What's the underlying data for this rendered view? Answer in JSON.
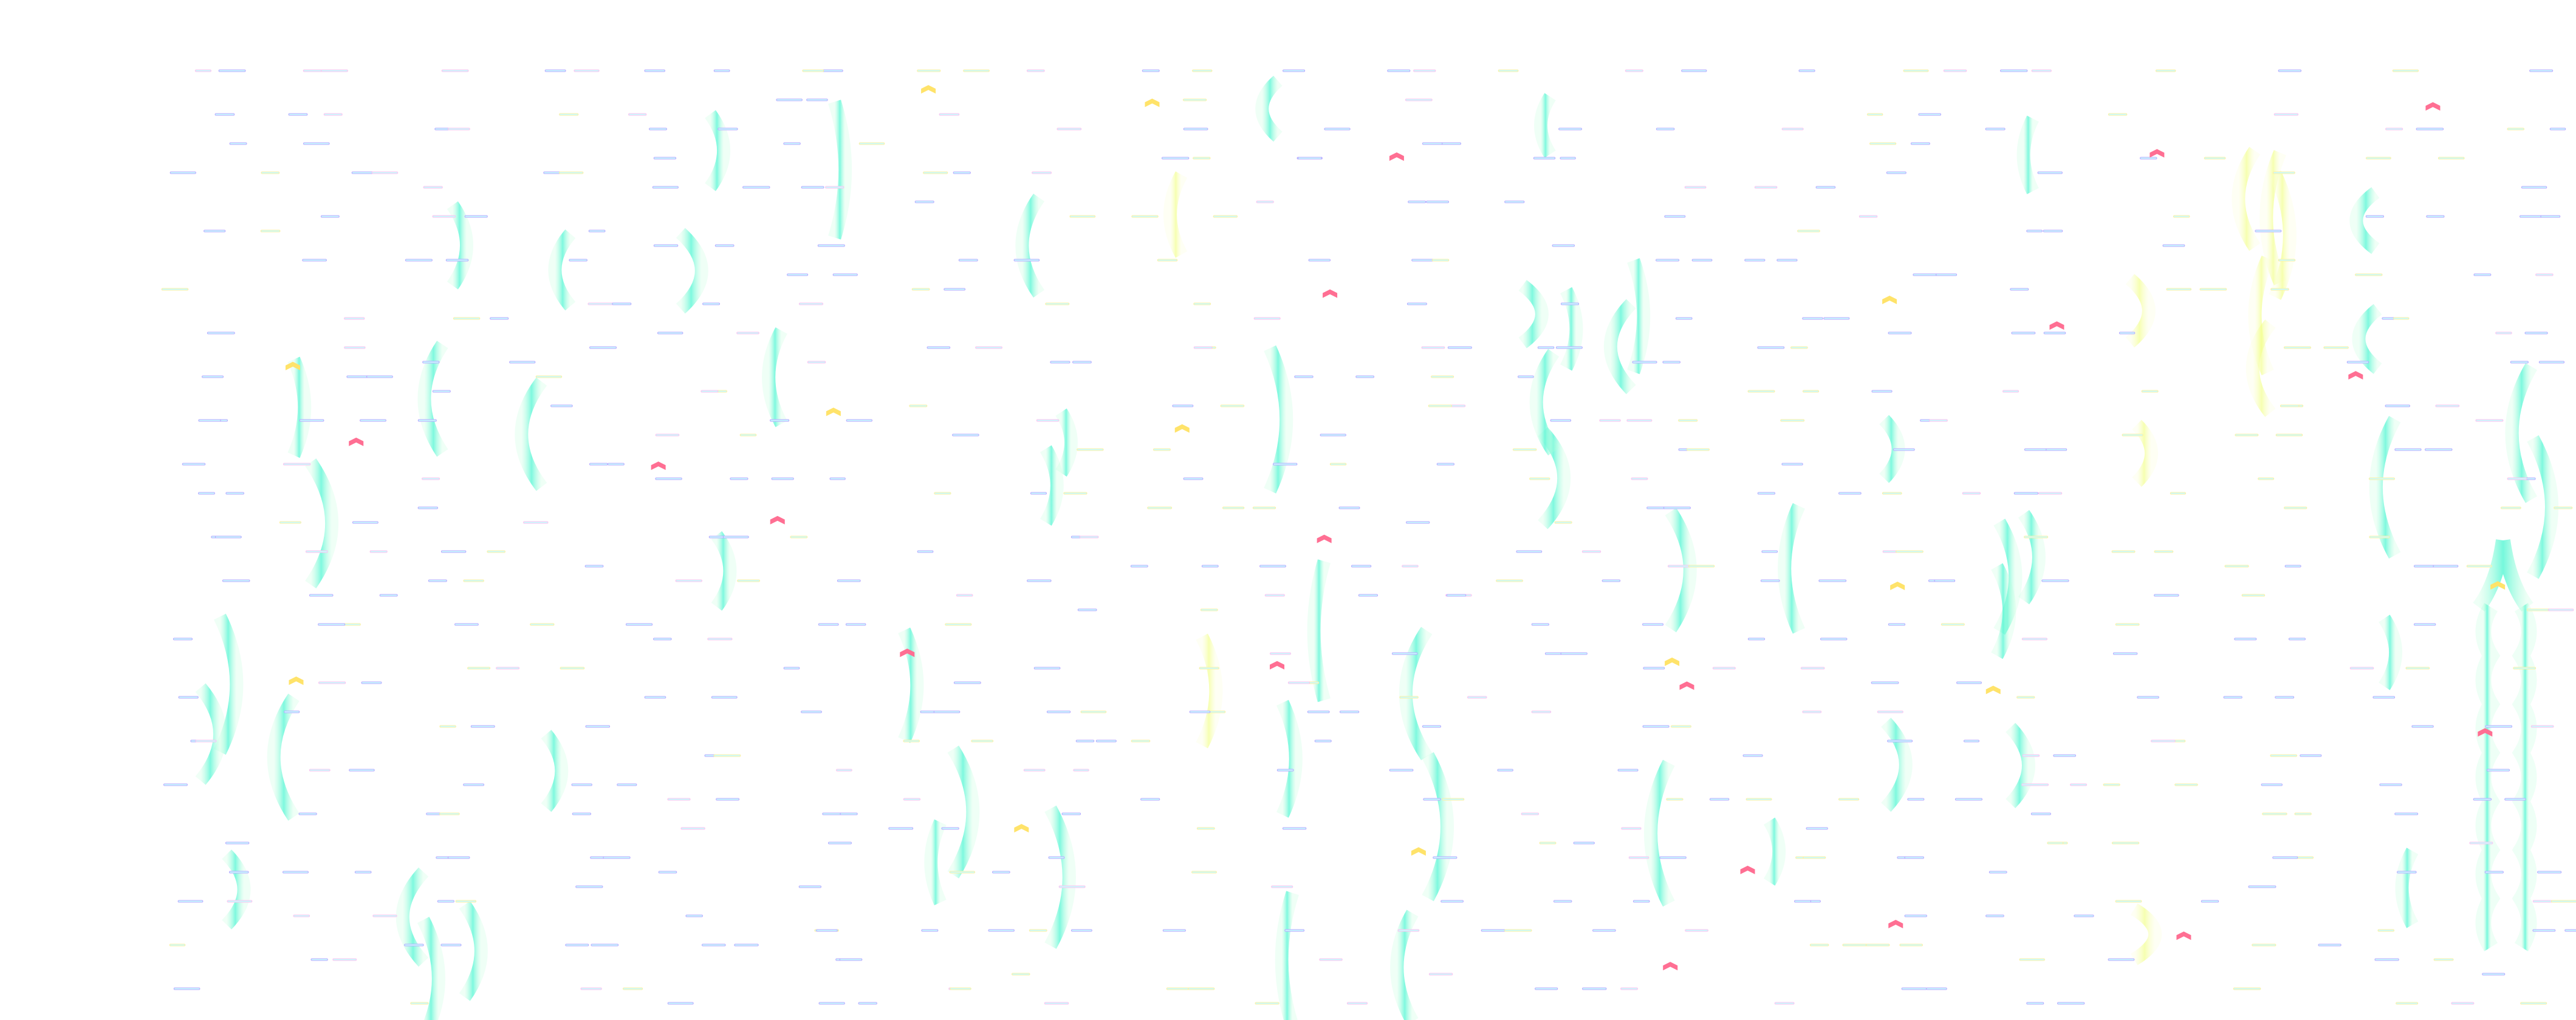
{
  "palette": {
    "dash_blue": "#b9a8ff",
    "dash_cyan": "#c8fbff",
    "dash_pink": "#ffc0ef",
    "dash_yellow": "#fff0a0",
    "chevron_pink": "#ff6f93",
    "chevron_yellow": "#ffe36a",
    "curve_teal": "#3ff5cf",
    "curve_mint": "#b8ffd8",
    "curve_yellow": "#f2ff8a",
    "background": "#ffffff"
  },
  "icons": [
    "chevron-up-icon",
    "curve-shape"
  ]
}
